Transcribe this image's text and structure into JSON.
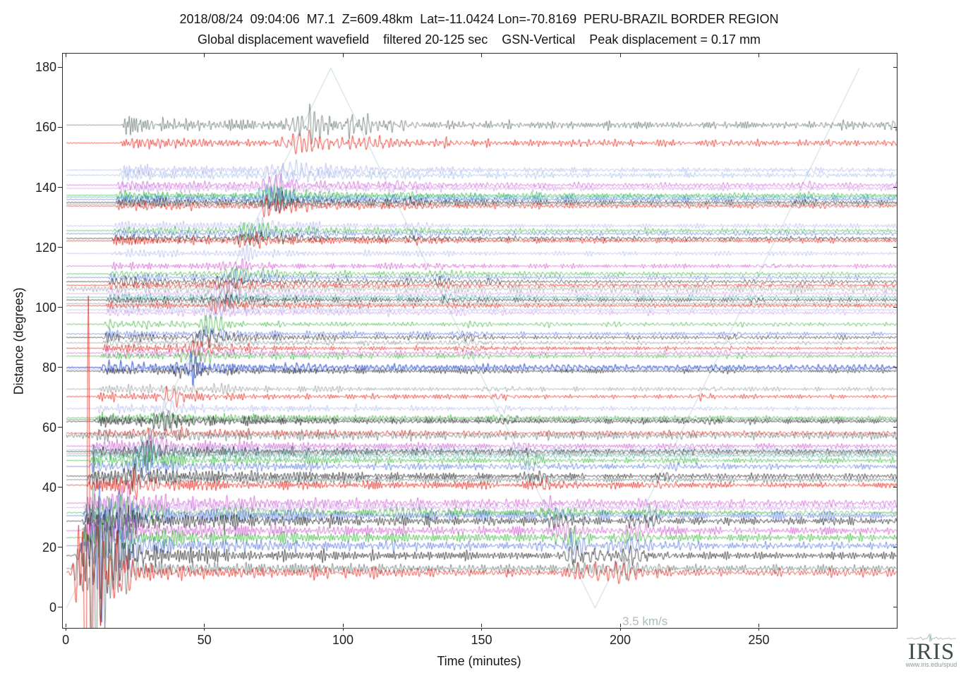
{
  "header": {
    "line1": "2018/08/24  09:04:06  M7.1  Z=609.48km  Lat=-11.0424 Lon=-70.8169  PERU-BRAZIL BORDER REGION",
    "line2": "Global displacement wavefield    filtered 20-125 sec    GSN-Vertical    Peak displacement = 0.17 mm"
  },
  "logo": {
    "name": "IRIS",
    "url": "www.iris.edu/spud"
  },
  "chart_data": {
    "type": "line",
    "title": "2018/08/24  09:04:06  M7.1  Z=609.48km  Lat=-11.0424 Lon=-70.8169  PERU-BRAZIL BORDER REGION",
    "subtitle": "Global displacement wavefield    filtered 20-125 sec    GSN-Vertical    Peak displacement = 0.17 mm",
    "xlabel": "Time (minutes)",
    "ylabel": "Distance (degrees)",
    "xlim": [
      -1.3,
      299.5
    ],
    "ylim": [
      -6.6,
      184.8
    ],
    "x_ticks": [
      0,
      50,
      100,
      150,
      200,
      250
    ],
    "y_ticks": [
      0,
      20,
      40,
      60,
      80,
      100,
      120,
      140,
      160,
      180
    ],
    "grid": false,
    "legend": "none",
    "event": {
      "date": "2018/08/24",
      "time": "09:04:06",
      "magnitude": "M7.1",
      "depth": "Z=609.48km",
      "lat": "Lat=-11.0424",
      "lon": "Lon=-70.8169",
      "region": "PERU-BRAZIL BORDER REGION"
    },
    "processing": {
      "wavefield": "Global displacement wavefield",
      "filter": "filtered 20-125 sec",
      "component": "GSN-Vertical",
      "peak_displacement": "Peak displacement = 0.17 mm"
    },
    "moveout": {
      "label": "3.5 km/s",
      "velocity_km_per_s": 3.5,
      "deg_per_min": 1.888,
      "vertices": [
        [
          0,
          0
        ],
        [
          95.34,
          180
        ],
        [
          190.68,
          0
        ],
        [
          286.02,
          180
        ]
      ],
      "label_pos": [
        200.5,
        -2.2
      ],
      "color": "#c6d6d8",
      "label_color": "#a9bdbd"
    },
    "palette": {
      "red": "#e51408",
      "green": "#2eb22e",
      "blue": "#4f6fdc",
      "magenta": "#cd4fcd",
      "violet": "#c793e8",
      "peri": "#a9b3ee",
      "lblue": "#9cb9e8",
      "black": "#1e1e1e",
      "gray": "#8f9494",
      "slate": "#5c6b6b",
      "teal": "#2fae9f"
    },
    "frame_color": "#2b2b2b",
    "traces": [
      {
        "d": 161.0,
        "c": "slate"
      },
      {
        "d": 155.0,
        "c": "red"
      },
      {
        "d": 146.0,
        "c": "peri"
      },
      {
        "d": 144.3,
        "c": "lblue"
      },
      {
        "d": 141.0,
        "c": "magenta"
      },
      {
        "d": 139.9,
        "c": "violet"
      },
      {
        "d": 137.6,
        "c": "green"
      },
      {
        "d": 137.0,
        "c": "teal"
      },
      {
        "d": 136.2,
        "c": "blue"
      },
      {
        "d": 135.2,
        "c": "black"
      },
      {
        "d": 134.6,
        "c": "gray"
      },
      {
        "d": 134.0,
        "c": "red"
      },
      {
        "d": 127.4,
        "c": "peri"
      },
      {
        "d": 125.8,
        "c": "green"
      },
      {
        "d": 124.8,
        "c": "blue"
      },
      {
        "d": 123.2,
        "c": "black"
      },
      {
        "d": 122.4,
        "c": "red"
      },
      {
        "d": 118.2,
        "c": "peri"
      },
      {
        "d": 114.0,
        "c": "magenta"
      },
      {
        "d": 111.4,
        "c": "green"
      },
      {
        "d": 110.2,
        "c": "blue"
      },
      {
        "d": 108.8,
        "c": "black"
      },
      {
        "d": 107.6,
        "c": "red"
      },
      {
        "d": 106.4,
        "c": "gray",
        "f": "noisy"
      },
      {
        "d": 104.8,
        "c": "violet"
      },
      {
        "d": 103.6,
        "c": "teal"
      },
      {
        "d": 102.7,
        "c": "black"
      },
      {
        "d": 101.5,
        "c": "gray"
      },
      {
        "d": 100.8,
        "c": "red"
      },
      {
        "d": 99.4,
        "c": "peri"
      },
      {
        "d": 98.4,
        "c": "violet"
      },
      {
        "d": 94.6,
        "c": "green"
      },
      {
        "d": 91.4,
        "c": "blue"
      },
      {
        "d": 90.2,
        "c": "black"
      },
      {
        "d": 88.4,
        "c": "gray"
      },
      {
        "d": 86.6,
        "c": "red"
      },
      {
        "d": 85.0,
        "c": "magenta"
      },
      {
        "d": 84.0,
        "c": "green"
      },
      {
        "d": 80.2,
        "c": "blue",
        "f": "bold"
      },
      {
        "d": 79.6,
        "c": "peri"
      },
      {
        "d": 79.0,
        "c": "black"
      },
      {
        "d": 73.0,
        "c": "gray"
      },
      {
        "d": 70.5,
        "c": "red"
      },
      {
        "d": 66.5,
        "c": "peri"
      },
      {
        "d": 63.4,
        "c": "green"
      },
      {
        "d": 62.8,
        "c": "slate"
      },
      {
        "d": 62.2,
        "c": "black"
      },
      {
        "d": 58.3,
        "c": "red"
      },
      {
        "d": 57.5,
        "c": "slate",
        "f": "noisy"
      },
      {
        "d": 54.0,
        "c": "magenta"
      },
      {
        "d": 52.8,
        "c": "lblue"
      },
      {
        "d": 52.2,
        "c": "black"
      },
      {
        "d": 51.5,
        "c": "gray"
      },
      {
        "d": 50.8,
        "c": "teal"
      },
      {
        "d": 49.2,
        "c": "green"
      },
      {
        "d": 47.2,
        "c": "blue"
      },
      {
        "d": 44.0,
        "c": "black"
      },
      {
        "d": 42.8,
        "c": "slate"
      },
      {
        "d": 41.0,
        "c": "red"
      },
      {
        "d": 35.0,
        "c": "magenta"
      },
      {
        "d": 33.5,
        "c": "violet"
      },
      {
        "d": 31.8,
        "c": "green"
      },
      {
        "d": 30.8,
        "c": "blue"
      },
      {
        "d": 29.0,
        "c": "black"
      },
      {
        "d": 25.8,
        "c": "magenta"
      },
      {
        "d": 23.5,
        "c": "green"
      },
      {
        "d": 20.8,
        "c": "blue"
      },
      {
        "d": 17.5,
        "c": "black"
      },
      {
        "d": 13.2,
        "c": "slate"
      },
      {
        "d": 11.8,
        "c": "red"
      }
    ]
  }
}
